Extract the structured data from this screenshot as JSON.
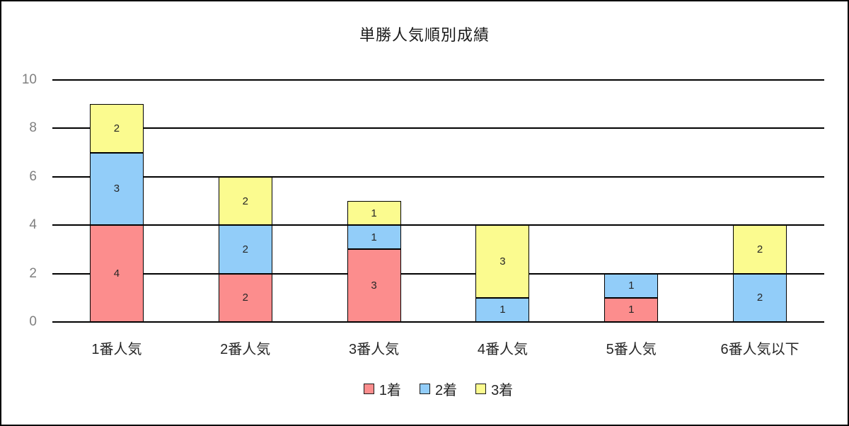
{
  "chart_data": {
    "type": "bar",
    "stacked": true,
    "title": "単勝人気順別成績",
    "categories": [
      "1番人気",
      "2番人気",
      "3番人気",
      "4番人気",
      "5番人気",
      "6番人気以下"
    ],
    "series": [
      {
        "name": "1着",
        "color": "#FC8D8D",
        "values": [
          4,
          2,
          3,
          0,
          1,
          0
        ]
      },
      {
        "name": "2着",
        "color": "#92CDF9",
        "values": [
          3,
          2,
          1,
          1,
          1,
          2
        ]
      },
      {
        "name": "3着",
        "color": "#FBFB8F",
        "values": [
          2,
          2,
          1,
          3,
          0,
          2
        ]
      }
    ],
    "totals": [
      9,
      6,
      5,
      4,
      2,
      4
    ],
    "ylim": [
      0,
      10
    ],
    "yticks": [
      0,
      2,
      4,
      6,
      8,
      10
    ],
    "xlabel": "",
    "ylabel": "",
    "grid": "horizontal",
    "legend_position": "bottom",
    "data_labels": "inside-center",
    "styles": {
      "grid_color": "#000000",
      "segment_border_color": "#000000",
      "y_tick_label_color": "#7f7f7f",
      "x_tick_label_color": "#262626",
      "title_color": "#1a1a1a",
      "background": "#ffffff"
    }
  }
}
